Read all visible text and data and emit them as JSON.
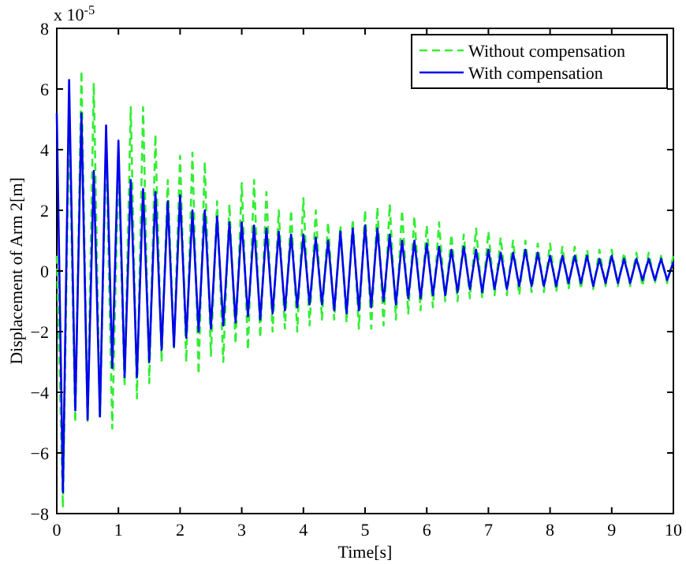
{
  "chart_data": {
    "type": "line",
    "xlabel": "Time[s]",
    "ylabel": "Displacement of Arm 2[m]",
    "annotations": [
      "x 10$^{-5}$"
    ],
    "x": [
      0,
      0.1,
      0.2,
      0.3,
      0.4,
      0.5,
      0.6,
      0.7,
      0.8,
      0.9,
      1,
      1.1,
      1.2,
      1.3,
      1.4,
      1.5,
      1.6,
      1.7,
      1.8,
      1.9,
      2,
      2.1,
      2.2,
      2.3,
      2.4,
      2.5,
      2.6,
      2.7,
      2.8,
      2.9,
      3,
      3.1,
      3.2,
      3.3,
      3.4,
      3.5,
      3.6,
      3.7,
      3.8,
      3.9,
      4,
      4.1,
      4.2,
      4.3,
      4.4,
      4.5,
      4.6,
      4.7,
      4.8,
      4.9,
      5,
      5.1,
      5.2,
      5.3,
      5.4,
      5.5,
      5.6,
      5.7,
      5.8,
      5.9,
      6,
      6.1,
      6.2,
      6.3,
      6.4,
      6.5,
      6.6,
      6.7,
      6.8,
      6.9,
      7,
      7.1,
      7.2,
      7.3,
      7.4,
      7.5,
      7.6,
      7.7,
      7.8,
      7.9,
      8,
      8.1,
      8.2,
      8.3,
      8.4,
      8.5,
      8.6,
      8.7,
      8.8,
      8.9,
      9,
      9.1,
      9.2,
      9.3,
      9.4,
      9.5,
      9.6,
      9.7,
      9.8,
      9.9,
      10
    ],
    "series": [
      {
        "name": "Without compensation",
        "color": "#33ee33",
        "line_style": "dashed",
        "values": [
          0.5,
          -7.8,
          5.0,
          -5.0,
          6.6,
          -5.0,
          6.2,
          -4.8,
          4.2,
          -5.2,
          3.5,
          -3.8,
          5.4,
          -4.2,
          5.4,
          -3.7,
          4.5,
          -3.0,
          3.0,
          -2.6,
          3.8,
          -3.0,
          3.9,
          -3.4,
          3.6,
          -2.8,
          2.3,
          -3.0,
          2.2,
          -2.4,
          2.9,
          -2.6,
          3.0,
          -2.2,
          2.6,
          -2.0,
          2.0,
          -1.9,
          2.0,
          -2.0,
          2.4,
          -1.8,
          2.0,
          -1.6,
          1.6,
          -1.6,
          1.5,
          -1.7,
          1.7,
          -1.9,
          2.0,
          -1.9,
          2.1,
          -1.8,
          2.2,
          -1.6,
          2.0,
          -1.4,
          1.8,
          -1.3,
          1.5,
          -1.2,
          1.6,
          -1.0,
          1.2,
          -1.0,
          1.2,
          -0.9,
          1.4,
          -0.9,
          1.3,
          -0.8,
          1.1,
          -0.8,
          1.0,
          -0.8,
          1.0,
          -0.7,
          0.9,
          -0.7,
          0.9,
          -0.7,
          0.8,
          -0.6,
          0.8,
          -0.6,
          0.7,
          -0.6,
          0.7,
          -0.5,
          0.7,
          -0.5,
          0.6,
          -0.5,
          0.6,
          -0.5,
          0.6,
          -0.4,
          0.5,
          -0.4,
          0.5
        ]
      },
      {
        "name": "With compensation",
        "color": "#0000ee",
        "line_style": "solid",
        "values": [
          5.2,
          -7.3,
          6.3,
          -4.6,
          5.2,
          -4.9,
          3.3,
          -4.8,
          4.8,
          -3.2,
          4.3,
          -3.5,
          3.0,
          -3.5,
          2.7,
          -3.0,
          2.6,
          -2.6,
          2.3,
          -2.5,
          2.5,
          -2.2,
          2.0,
          -2.0,
          2.0,
          -1.9,
          1.8,
          -1.8,
          1.6,
          -1.7,
          1.6,
          -1.5,
          1.5,
          -1.6,
          1.4,
          -1.4,
          1.3,
          -1.3,
          1.2,
          -1.2,
          1.2,
          -1.1,
          1.1,
          -1.1,
          1.0,
          -1.3,
          1.3,
          -1.4,
          1.4,
          -1.3,
          1.5,
          -1.2,
          1.4,
          -1.0,
          1.2,
          -1.1,
          1.0,
          -0.9,
          1.0,
          -0.9,
          0.9,
          -0.8,
          0.8,
          -0.8,
          0.7,
          -0.7,
          0.8,
          -0.6,
          0.7,
          -0.7,
          0.7,
          -0.6,
          0.6,
          -0.6,
          0.6,
          -0.5,
          0.7,
          -0.5,
          0.6,
          -0.5,
          0.5,
          -0.5,
          0.5,
          -0.4,
          0.5,
          -0.4,
          0.5,
          -0.5,
          0.4,
          -0.4,
          0.5,
          -0.4,
          0.4,
          -0.4,
          0.4,
          -0.3,
          0.4,
          -0.3,
          0.4,
          -0.3,
          0.3
        ]
      }
    ],
    "xlim": [
      0,
      10
    ],
    "xticks": [
      0,
      1,
      2,
      3,
      4,
      5,
      6,
      7,
      8,
      9,
      10
    ],
    "ylim": [
      -8,
      8
    ],
    "yticks": [
      -8,
      -6,
      -4,
      -2,
      0,
      2,
      4,
      6,
      8
    ],
    "grid": false,
    "legend": "top right"
  }
}
